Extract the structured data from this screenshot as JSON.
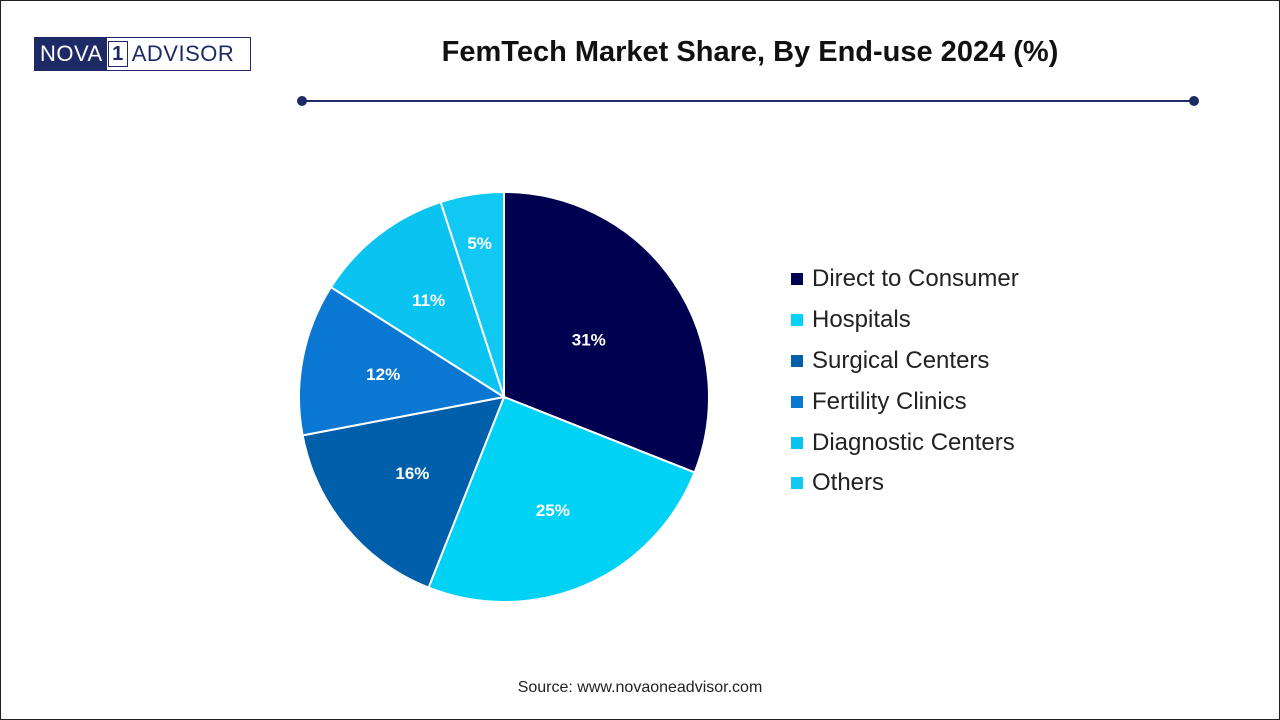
{
  "logo": {
    "left": "NOVA",
    "digit": "1",
    "right": "ADVISOR"
  },
  "title": "FemTech Market Share, By End-use 2024 (%)",
  "source": "Source: www.novaoneadvisor.com",
  "colors": {
    "brand": "#1e2a66",
    "border": "#222222"
  },
  "chart_data": {
    "type": "pie",
    "title": "FemTech Market Share, By End-use 2024 (%)",
    "unit": "%",
    "start_angle_deg": 0,
    "direction": "clockwise",
    "legend_position": "right",
    "slices": [
      {
        "label": "Direct to Consumer",
        "value": 31,
        "display": "31%",
        "color": "#000050"
      },
      {
        "label": "Hospitals",
        "value": 25,
        "display": "25%",
        "color": "#00d2f5"
      },
      {
        "label": "Surgical Centers",
        "value": 16,
        "display": "16%",
        "color": "#005faa"
      },
      {
        "label": "Fertility Clinics",
        "value": 12,
        "display": "12%",
        "color": "#0a78d2"
      },
      {
        "label": "Diagnostic Centers",
        "value": 11,
        "display": "11%",
        "color": "#0ac3f0"
      },
      {
        "label": "Others",
        "value": 5,
        "display": "5%",
        "color": "#10c8f2"
      }
    ]
  }
}
